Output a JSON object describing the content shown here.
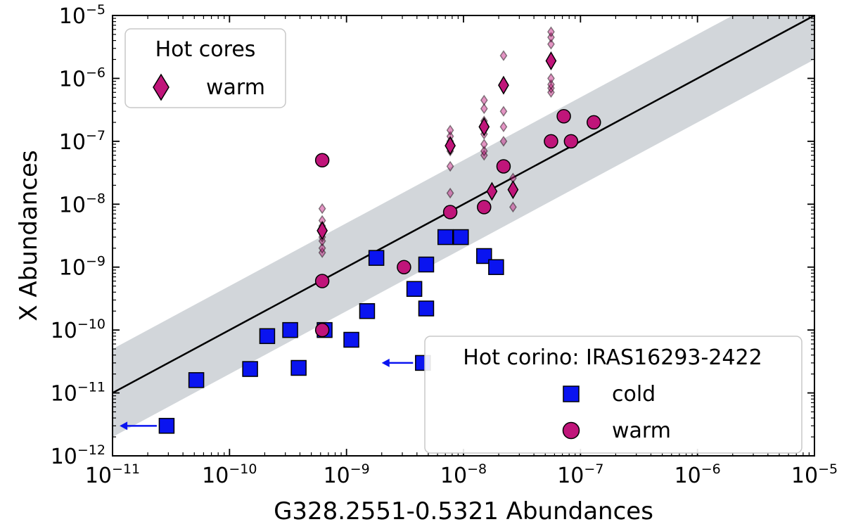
{
  "chart_data": {
    "type": "scatter",
    "xlabel": "G328.2551-0.5321 Abundances",
    "ylabel": "X Abundances",
    "xscale": "log",
    "yscale": "log",
    "xlim": [
      1e-11,
      1e-05
    ],
    "ylim": [
      1e-12,
      1e-05
    ],
    "xticks": [
      {
        "base": "10",
        "exp": "−11",
        "value": 1e-11
      },
      {
        "base": "10",
        "exp": "−10",
        "value": 1e-10
      },
      {
        "base": "10",
        "exp": "−9",
        "value": 1e-09
      },
      {
        "base": "10",
        "exp": "−8",
        "value": 1e-08
      },
      {
        "base": "10",
        "exp": "−7",
        "value": 1e-07
      },
      {
        "base": "10",
        "exp": "−6",
        "value": 1e-06
      },
      {
        "base": "10",
        "exp": "−5",
        "value": 1e-05
      }
    ],
    "yticks": [
      {
        "base": "10",
        "exp": "−12",
        "value": 1e-12
      },
      {
        "base": "10",
        "exp": "−11",
        "value": 1e-11
      },
      {
        "base": "10",
        "exp": "−10",
        "value": 1e-10
      },
      {
        "base": "10",
        "exp": "−9",
        "value": 1e-09
      },
      {
        "base": "10",
        "exp": "−8",
        "value": 1e-08
      },
      {
        "base": "10",
        "exp": "−7",
        "value": 1e-07
      },
      {
        "base": "10",
        "exp": "−6",
        "value": 1e-06
      },
      {
        "base": "10",
        "exp": "−5",
        "value": 1e-05
      }
    ],
    "reference_line": {
      "type": "y=x",
      "color": "#000000"
    },
    "band": {
      "description": "factor of 5 around y=x",
      "factor": 5,
      "color": "#d2d6da"
    },
    "legends": [
      {
        "title": "Hot cores",
        "position": "top-left",
        "entries": [
          {
            "label": "warm",
            "marker": "diamond",
            "color": "#c0157a"
          }
        ]
      },
      {
        "title": "Hot corino: IRAS16293-2422",
        "position": "bottom-right",
        "entries": [
          {
            "label": "cold",
            "marker": "square",
            "color": "#0a14f0"
          },
          {
            "label": "warm",
            "marker": "circle",
            "color": "#c0157a"
          }
        ]
      }
    ],
    "series": [
      {
        "name": "Hot corino cold",
        "marker": "square",
        "color": "#0a14f0",
        "points": [
          {
            "x": 2.9e-11,
            "y": 3e-12
          },
          {
            "x": 5.2e-11,
            "y": 1.6e-11
          },
          {
            "x": 1.5e-10,
            "y": 2.4e-11
          },
          {
            "x": 2.1e-10,
            "y": 8e-11
          },
          {
            "x": 3.3e-10,
            "y": 1e-10
          },
          {
            "x": 3.9e-10,
            "y": 2.5e-11
          },
          {
            "x": 6.5e-10,
            "y": 1e-10
          },
          {
            "x": 1.1e-09,
            "y": 7e-11
          },
          {
            "x": 1.5e-09,
            "y": 2e-10
          },
          {
            "x": 1.8e-09,
            "y": 1.4e-09
          },
          {
            "x": 3.8e-09,
            "y": 4.5e-10
          },
          {
            "x": 4.8e-09,
            "y": 1.1e-09
          },
          {
            "x": 4.8e-09,
            "y": 2.2e-10
          },
          {
            "x": 4.5e-09,
            "y": 3e-11
          },
          {
            "x": 7e-09,
            "y": 3e-09
          },
          {
            "x": 9.5e-09,
            "y": 3e-09
          },
          {
            "x": 1.5e-08,
            "y": 1.5e-09
          },
          {
            "x": 1.9e-08,
            "y": 1e-09
          }
        ],
        "upper_limits": [
          {
            "x": 2.9e-11,
            "y": 3e-12,
            "arrow_to_x": 1.15e-11
          },
          {
            "x": 4.5e-09,
            "y": 3e-11,
            "arrow_to_x": 2e-09
          }
        ]
      },
      {
        "name": "Hot corino warm",
        "marker": "circle",
        "color": "#c0157a",
        "points": [
          {
            "x": 6.2e-10,
            "y": 5e-08
          },
          {
            "x": 6.2e-10,
            "y": 6e-10
          },
          {
            "x": 6.2e-10,
            "y": 1e-10
          },
          {
            "x": 3.1e-09,
            "y": 1e-09
          },
          {
            "x": 7.7e-09,
            "y": 7.5e-09
          },
          {
            "x": 1.5e-08,
            "y": 9e-09
          },
          {
            "x": 2.2e-08,
            "y": 4e-08
          },
          {
            "x": 5.6e-08,
            "y": 1e-07
          },
          {
            "x": 7.2e-08,
            "y": 2.5e-07
          },
          {
            "x": 8.3e-08,
            "y": 1e-07
          },
          {
            "x": 1.3e-07,
            "y": 2e-07
          }
        ]
      },
      {
        "name": "Hot cores warm",
        "marker": "diamond",
        "color": "#c0157a",
        "points": [
          {
            "x": 6.2e-10,
            "y": 3.8e-09,
            "spread": [
              1.7e-09,
              2e-09,
              2.6e-09,
              3e-09,
              4.5e-09,
              5.5e-09,
              8.5e-09
            ]
          },
          {
            "x": 7.7e-09,
            "y": 8.5e-08,
            "spread": [
              1.5e-08,
              4e-08,
              7e-08,
              1e-07,
              1.2e-07,
              1.5e-07
            ]
          },
          {
            "x": 1.5e-08,
            "y": 1.7e-07,
            "spread": [
              6e-08,
              7e-08,
              9e-08,
              1.3e-07,
              2.1e-07,
              3.3e-07,
              4.5e-07
            ]
          },
          {
            "x": 1.75e-08,
            "y": 1.6e-08,
            "spread": []
          },
          {
            "x": 2.2e-08,
            "y": 7.8e-07,
            "spread": [
              1e-07,
              1.7e-07,
              3e-07,
              2.3e-06
            ]
          },
          {
            "x": 2.65e-08,
            "y": 1.7e-08,
            "spread": [
              9e-09,
              2.6e-08
            ]
          },
          {
            "x": 5.6e-08,
            "y": 1.9e-06,
            "spread": [
              6e-07,
              7e-07,
              8e-07,
              1e-06,
              3.5e-06,
              4.5e-06,
              5.5e-06
            ]
          }
        ]
      }
    ]
  }
}
